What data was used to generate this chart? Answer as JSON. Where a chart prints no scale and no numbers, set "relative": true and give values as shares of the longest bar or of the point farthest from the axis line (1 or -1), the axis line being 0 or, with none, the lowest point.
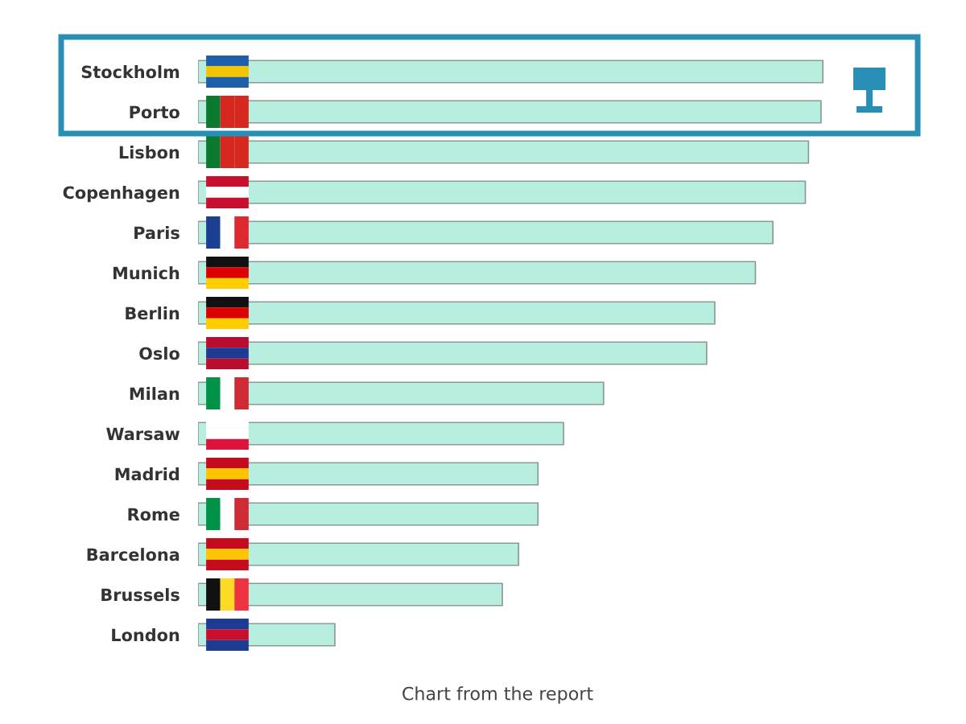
{
  "chart_data": {
    "type": "bar",
    "orientation": "horizontal",
    "relative": true,
    "categories": [
      "Stockholm",
      "Porto",
      "Lisbon",
      "Copenhagen",
      "Paris",
      "Munich",
      "Berlin",
      "Oslo",
      "Milan",
      "Warsaw",
      "Madrid",
      "Rome",
      "Barcelona",
      "Brussels",
      "London"
    ],
    "values": [
      1,
      0.997,
      0.977,
      0.972,
      0.92,
      0.892,
      0.827,
      0.814,
      0.649,
      0.585,
      0.544,
      0.544,
      0.513,
      0.487,
      0.219
    ],
    "color": "#b8eedf",
    "grid": false,
    "annotations": [
      "Chart from the report"
    ]
  }
}
